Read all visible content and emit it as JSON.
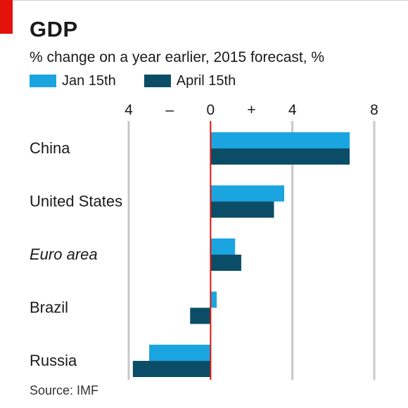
{
  "header": {
    "title": "GDP",
    "subtitle": "% change on a year earlier, 2015 forecast, %"
  },
  "legend": {
    "items": [
      {
        "label": "Jan 15th",
        "color": "#1aa5e0"
      },
      {
        "label": "April 15th",
        "color": "#0b4d66"
      }
    ]
  },
  "footer": {
    "source": "Source: IMF"
  },
  "chart_data": {
    "type": "bar",
    "orientation": "horizontal",
    "title": "GDP",
    "subtitle": "% change on a year earlier, 2015 forecast, %",
    "categories": [
      "China",
      "United States",
      "Euro area",
      "Brazil",
      "Russia"
    ],
    "category_italic": [
      false,
      false,
      true,
      false,
      false
    ],
    "series": [
      {
        "name": "Jan 15th",
        "color": "#1aa5e0",
        "values": [
          6.8,
          3.6,
          1.2,
          0.3,
          -3.0
        ]
      },
      {
        "name": "April 15th",
        "color": "#0b4d66",
        "values": [
          6.8,
          3.1,
          1.5,
          -1.0,
          -3.8
        ]
      }
    ],
    "xlim": [
      -4,
      8
    ],
    "ticks": [
      {
        "value": -4,
        "label": "4"
      },
      {
        "value": 0,
        "label": "0"
      },
      {
        "value": 4,
        "label": "4"
      },
      {
        "value": 8,
        "label": "8"
      }
    ],
    "sign_labels": [
      {
        "value": -2,
        "label": "–"
      },
      {
        "value": 2,
        "label": "+"
      }
    ],
    "gridlines": true,
    "zero_line_color": "#e3120b",
    "grid_color": "#c8c8c8",
    "legend_position": "top-left"
  }
}
